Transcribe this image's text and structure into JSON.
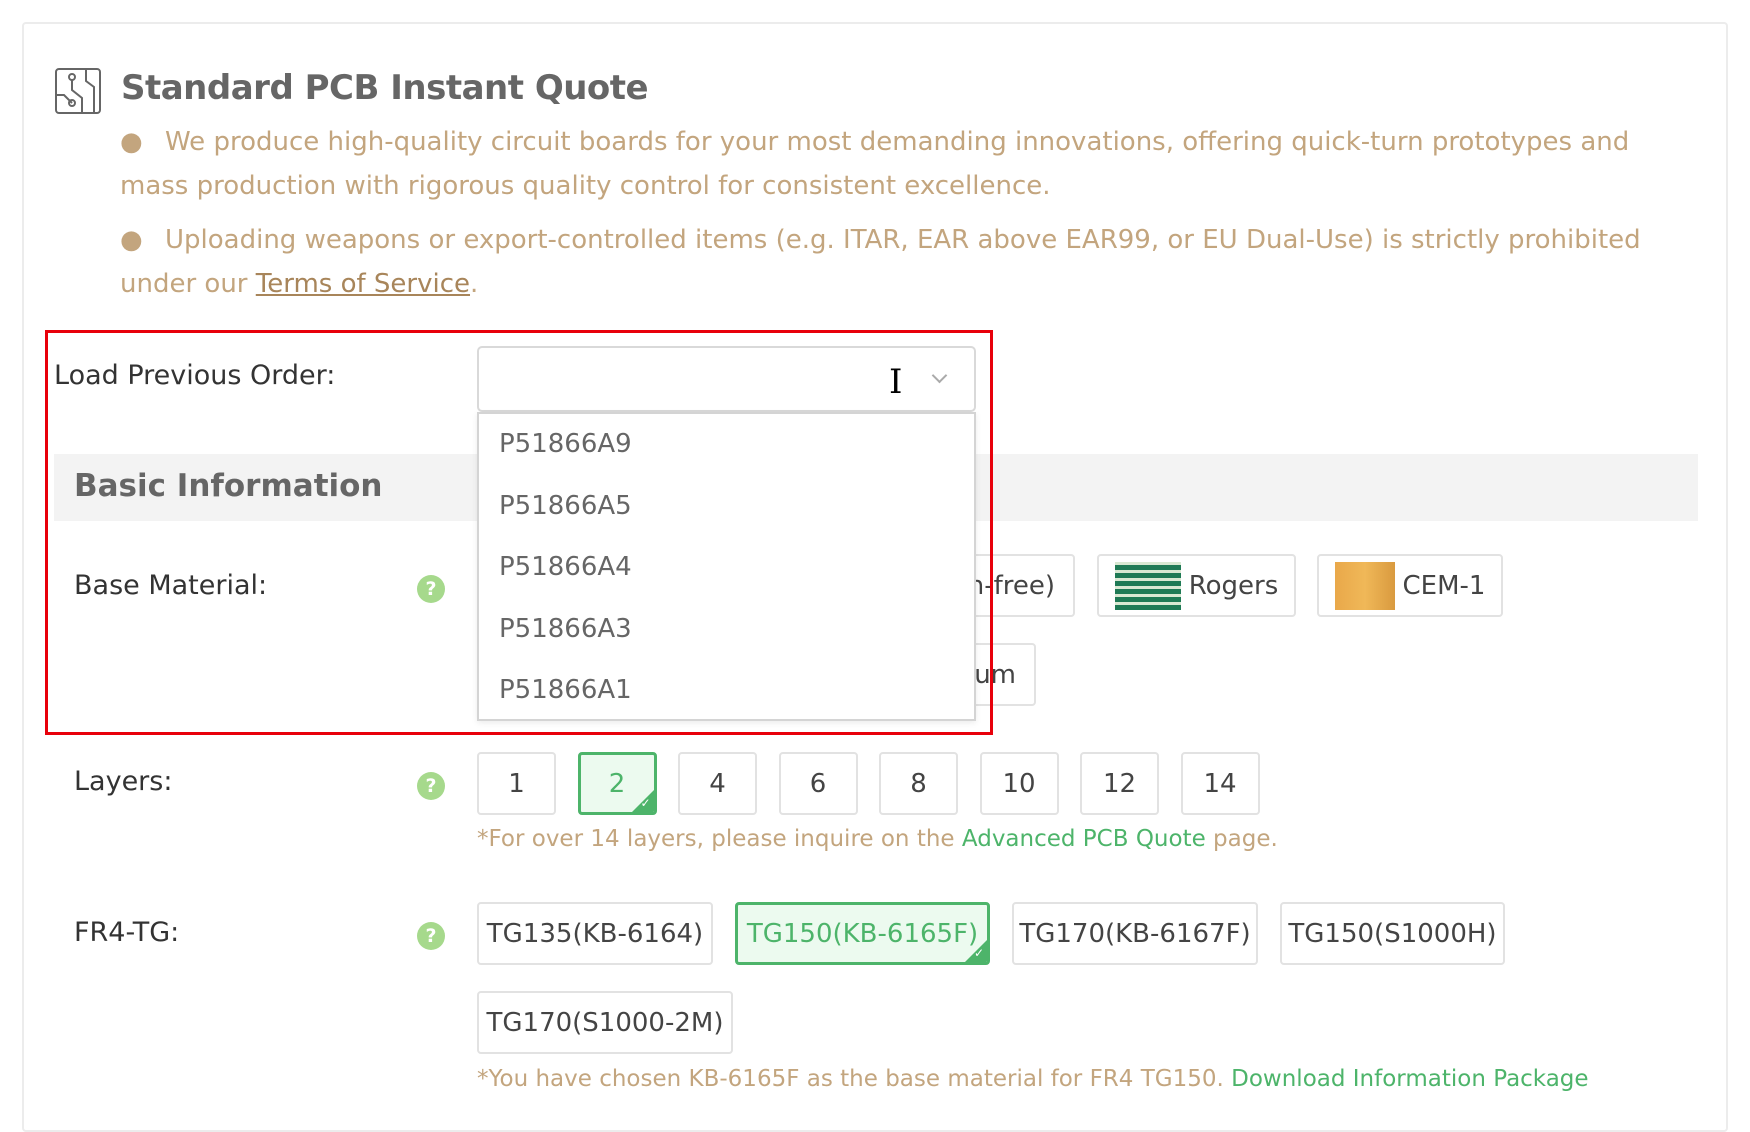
{
  "header": {
    "title": "Standard PCB Instant Quote",
    "icon": "pcb-circuit-icon",
    "bullets": [
      "We produce high-quality circuit boards for your most demanding innovations, offering quick-turn prototypes and mass production with rigorous quality control for consistent excellence.",
      "Uploading weapons or export-controlled items (e.g. ITAR, EAR above EAR99, or EU Dual-Use) is strictly prohibited under our "
    ],
    "terms_link": "Terms of Service",
    "terms_suffix": "."
  },
  "load_previous_order": {
    "label": "Load Previous Order:",
    "value": "",
    "options": [
      "P51866A9",
      "P51866A5",
      "P51866A4",
      "P51866A3",
      "P51866A1"
    ]
  },
  "basic_information": {
    "title": "Basic Information",
    "base_material": {
      "label": "Base Material:",
      "options": [
        {
          "label": "(Halogen-free)"
        },
        {
          "label": "Rogers"
        },
        {
          "label": "CEM-1"
        },
        {
          "label": "Aluminum"
        }
      ]
    },
    "layers": {
      "label": "Layers:",
      "options": [
        "1",
        "2",
        "4",
        "6",
        "8",
        "10",
        "12",
        "14"
      ],
      "selected": "2",
      "note_prefix": "*For over 14 layers, please inquire on the ",
      "note_link": "Advanced PCB Quote",
      "note_suffix": " page."
    },
    "fr4_tg": {
      "label": "FR4-TG:",
      "options": [
        "TG135(KB-6164)",
        "TG150(KB-6165F)",
        "TG170(KB-6167F)",
        "TG150(S1000H)",
        "TG170(S1000-2M)"
      ],
      "selected": "TG150(KB-6165F)",
      "note_prefix": "*You have chosen KB-6165F as the base material for FR4 TG150. ",
      "note_link": "Download Information Package"
    }
  },
  "colors": {
    "accent_green": "#4db46a",
    "note_gold": "#c3a57e",
    "highlight_red": "#e8000b",
    "help_green": "#a6d98c"
  }
}
